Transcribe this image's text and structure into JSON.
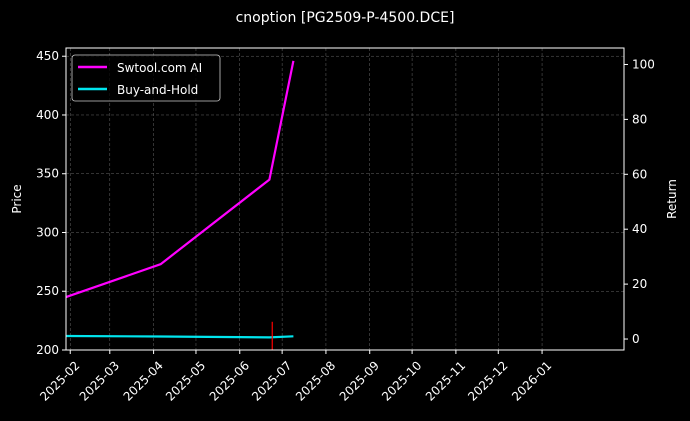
{
  "chart_data": {
    "type": "line",
    "title": "cnoption [PG2509-P-4500.DCE]",
    "ylabel": "Price",
    "y2label": "Return",
    "ylim": [
      200,
      457
    ],
    "y2lim": [
      -4,
      106
    ],
    "xlim": [
      "2025-01-29",
      "2026-02-28"
    ],
    "yticks": [
      200,
      250,
      300,
      350,
      400,
      450
    ],
    "y2ticks": [
      0,
      20,
      40,
      60,
      80,
      100
    ],
    "xticks": [
      "2025-02",
      "2025-03",
      "2025-04",
      "2025-05",
      "2025-06",
      "2025-07",
      "2025-08",
      "2025-09",
      "2025-10",
      "2025-11",
      "2025-12",
      "2026-01"
    ],
    "grid": true,
    "legend_position": "upper-left",
    "background": "#000000",
    "series": [
      {
        "name": "Swtool.com AI",
        "axis": "left",
        "color": "#ff00ff",
        "points": [
          {
            "x": "2025-01-29",
            "y": 245
          },
          {
            "x": "2025-04-06",
            "y": 273
          },
          {
            "x": "2025-06-22",
            "y": 345
          },
          {
            "x": "2025-07-09",
            "y": 446
          }
        ]
      },
      {
        "name": "Buy-and-Hold",
        "axis": "right",
        "color": "#00e5ee",
        "points": [
          {
            "x": "2025-01-29",
            "y": 1.1
          },
          {
            "x": "2025-04-06",
            "y": 0.9
          },
          {
            "x": "2025-06-22",
            "y": 0.6
          },
          {
            "x": "2025-07-09",
            "y": 1.0
          }
        ]
      }
    ],
    "markers": [
      {
        "type": "vertical-line",
        "x": "2025-06-24",
        "y_from": 200,
        "y_to": 224,
        "axis": "left",
        "color": "#ff0000"
      }
    ]
  }
}
